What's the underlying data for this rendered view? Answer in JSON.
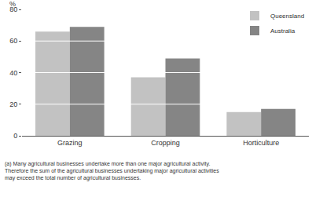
{
  "chart_data": {
    "type": "bar",
    "categories": [
      "Grazing",
      "Cropping",
      "Horticulture"
    ],
    "series": [
      {
        "name": "Queensland",
        "color": "#c2c2c2",
        "values": [
          66,
          37,
          15
        ]
      },
      {
        "name": "Australia",
        "color": "#858585",
        "values": [
          69,
          49,
          17
        ]
      }
    ],
    "y_label": "%",
    "ylim": [
      0,
      80
    ],
    "yticks": [
      0,
      20,
      40,
      60,
      80
    ],
    "grid": true,
    "legend": "top-right",
    "footnote": [
      "(a) Many agricultural businesses undertake more than one major agricultural activity.",
      "Therefore the sum of the agricultural businesses undertaking major agricultural activities",
      "may exceed the total number of agricultural businesses."
    ]
  }
}
